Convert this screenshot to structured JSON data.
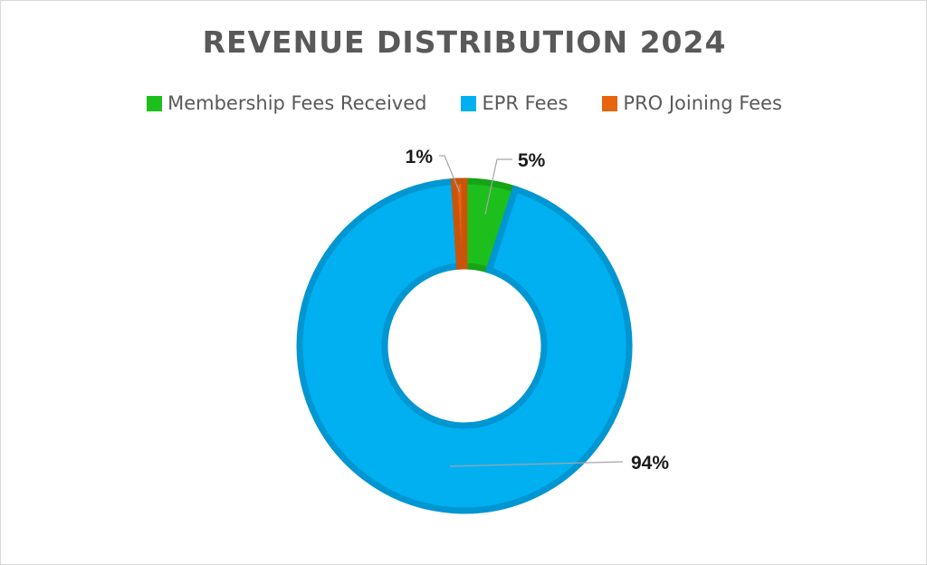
{
  "chart_data": {
    "type": "pie",
    "title": "REVENUE DISTRIBUTION 2024",
    "legend_position": "top",
    "categories": [
      "Membership Fees Received",
      "EPR Fees",
      "PRO Joining Fees"
    ],
    "values": [
      5,
      94,
      1
    ],
    "labels": [
      "5%",
      "94%",
      "1%"
    ],
    "colors": [
      "#1DBF1D",
      "#00B0F0",
      "#E8640F"
    ]
  }
}
